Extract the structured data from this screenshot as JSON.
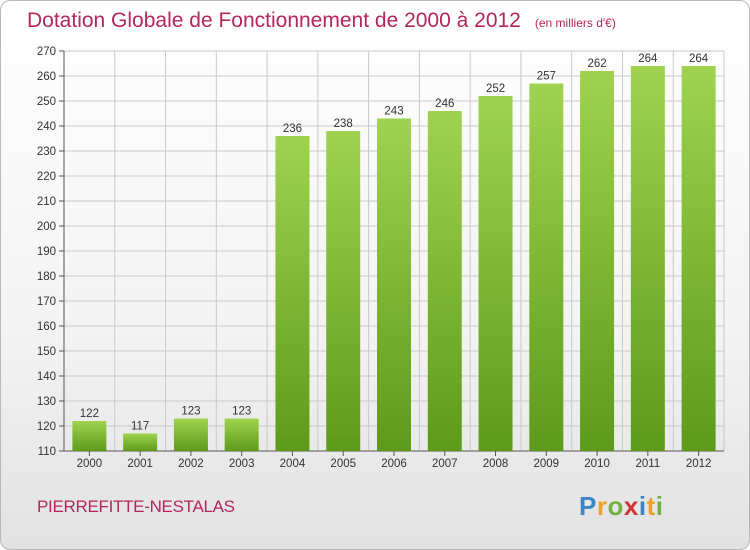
{
  "chart_data": {
    "type": "bar",
    "title": "Dotation Globale de Fonctionnement de 2000 à 2012",
    "subtitle": "(en milliers d'€)",
    "categories": [
      "2000",
      "2001",
      "2002",
      "2003",
      "2004",
      "2005",
      "2006",
      "2007",
      "2008",
      "2009",
      "2010",
      "2011",
      "2012"
    ],
    "values": [
      122,
      117,
      123,
      123,
      236,
      238,
      243,
      246,
      252,
      257,
      262,
      264,
      264
    ],
    "ylim": [
      110,
      270
    ],
    "yticks": [
      "110",
      "120",
      "130",
      "140",
      "150",
      "160",
      "170",
      "180",
      "190",
      "200",
      "210",
      "220",
      "230",
      "240",
      "250",
      "260",
      "270"
    ],
    "grid": true,
    "bar_color": "#8cc63f",
    "xlabel": "",
    "ylabel": ""
  },
  "commune": "PIERREFITTE-NESTALAS",
  "logo": {
    "text": "Proxiti",
    "letters": [
      "P",
      "r",
      "o",
      "x",
      "i",
      "t",
      "i"
    ]
  },
  "colors": {
    "title": "#b5265d",
    "grid": "#c9c9c9",
    "bar_top": "#9fd34f",
    "bar_bottom": "#5e9a1a"
  }
}
